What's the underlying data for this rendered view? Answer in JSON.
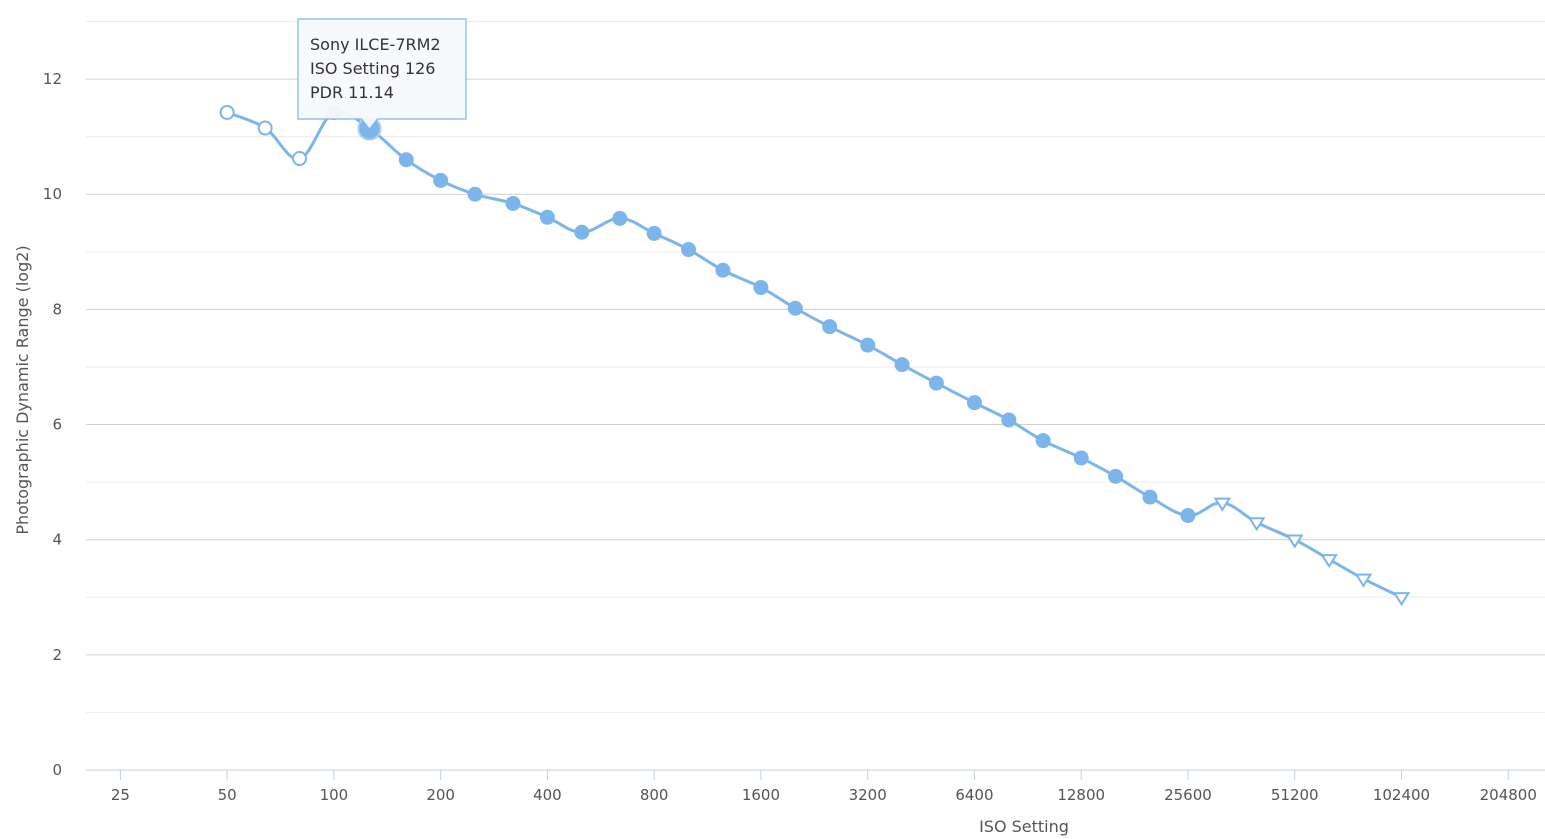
{
  "chart_data": {
    "type": "line",
    "xlabel": "ISO Setting",
    "ylabel": "Photographic Dynamic Range (log2)",
    "x_scale": "log2",
    "xlim": [
      20,
      260000
    ],
    "ylim": [
      0,
      13.2
    ],
    "x_ticks": [
      25,
      50,
      100,
      200,
      400,
      800,
      1600,
      3200,
      6400,
      12800,
      25600,
      51200,
      102400,
      204800
    ],
    "x_tick_labels": [
      "25",
      "50",
      "100",
      "200",
      "400",
      "800",
      "1600",
      "3200",
      "6400",
      "12800",
      "25600",
      "51200",
      "102400",
      "204800"
    ],
    "y_ticks": [
      0,
      2,
      4,
      6,
      8,
      10,
      12
    ],
    "y_tick_labels": [
      "0",
      "2",
      "4",
      "6",
      "8",
      "10",
      "12"
    ],
    "grid": true,
    "line_color": "#7cb5ec",
    "series": [
      {
        "name": "Sony ILCE-7RM2",
        "points": [
          {
            "x": 50,
            "y": 11.42,
            "marker": "open-circle"
          },
          {
            "x": 64,
            "y": 11.15,
            "marker": "open-circle"
          },
          {
            "x": 80,
            "y": 10.62,
            "marker": "open-circle"
          },
          {
            "x": 100,
            "y": 11.42,
            "marker": "filled-circle"
          },
          {
            "x": 126,
            "y": 11.14,
            "marker": "filled-circle"
          },
          {
            "x": 160,
            "y": 10.6,
            "marker": "filled-circle"
          },
          {
            "x": 200,
            "y": 10.24,
            "marker": "filled-circle"
          },
          {
            "x": 250,
            "y": 10.0,
            "marker": "filled-circle"
          },
          {
            "x": 320,
            "y": 9.84,
            "marker": "filled-circle"
          },
          {
            "x": 400,
            "y": 9.6,
            "marker": "filled-circle"
          },
          {
            "x": 500,
            "y": 9.34,
            "marker": "filled-circle"
          },
          {
            "x": 640,
            "y": 9.58,
            "marker": "filled-circle"
          },
          {
            "x": 800,
            "y": 9.32,
            "marker": "filled-circle"
          },
          {
            "x": 1000,
            "y": 9.04,
            "marker": "filled-circle"
          },
          {
            "x": 1250,
            "y": 8.68,
            "marker": "filled-circle"
          },
          {
            "x": 1600,
            "y": 8.38,
            "marker": "filled-circle"
          },
          {
            "x": 2000,
            "y": 8.02,
            "marker": "filled-circle"
          },
          {
            "x": 2500,
            "y": 7.7,
            "marker": "filled-circle"
          },
          {
            "x": 3200,
            "y": 7.38,
            "marker": "filled-circle"
          },
          {
            "x": 4000,
            "y": 7.04,
            "marker": "filled-circle"
          },
          {
            "x": 5000,
            "y": 6.72,
            "marker": "filled-circle"
          },
          {
            "x": 6400,
            "y": 6.38,
            "marker": "filled-circle"
          },
          {
            "x": 8000,
            "y": 6.08,
            "marker": "filled-circle"
          },
          {
            "x": 10000,
            "y": 5.72,
            "marker": "filled-circle"
          },
          {
            "x": 12800,
            "y": 5.42,
            "marker": "filled-circle"
          },
          {
            "x": 16000,
            "y": 5.1,
            "marker": "filled-circle"
          },
          {
            "x": 20000,
            "y": 4.74,
            "marker": "filled-circle"
          },
          {
            "x": 25600,
            "y": 4.42,
            "marker": "filled-circle"
          },
          {
            "x": 32000,
            "y": 4.64,
            "marker": "open-triangle"
          },
          {
            "x": 40000,
            "y": 4.3,
            "marker": "open-triangle"
          },
          {
            "x": 51200,
            "y": 4.0,
            "marker": "open-triangle"
          },
          {
            "x": 64000,
            "y": 3.66,
            "marker": "open-triangle"
          },
          {
            "x": 80000,
            "y": 3.32,
            "marker": "open-triangle"
          },
          {
            "x": 102400,
            "y": 3.0,
            "marker": "open-triangle"
          }
        ]
      }
    ],
    "tooltip": {
      "point_index": 4,
      "lines": [
        "Sony ILCE-7RM2",
        "ISO Setting 126",
        "PDR 11.14"
      ]
    }
  }
}
